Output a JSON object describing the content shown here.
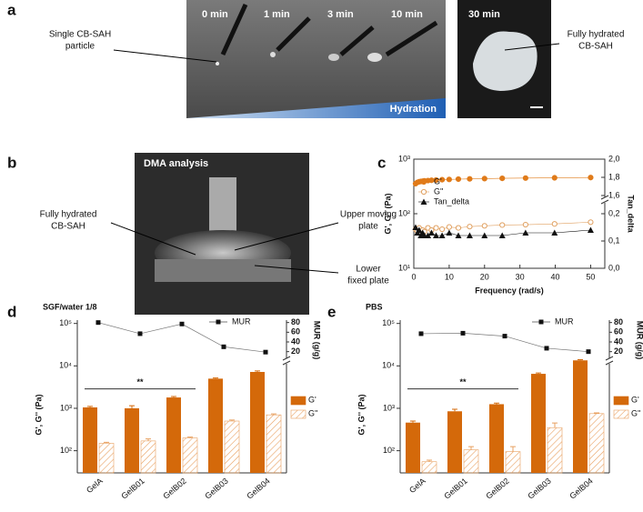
{
  "panel_labels": [
    "a",
    "b",
    "c",
    "d",
    "e"
  ],
  "panel_a": {
    "times": [
      "0 min",
      "1 min",
      "3 min",
      "10 min"
    ],
    "time_30": "30 min",
    "hydration": "Hydration",
    "left_label": [
      "Single CB-SAH",
      "particle"
    ],
    "right_label": [
      "Fully hydrated",
      "CB-SAH"
    ]
  },
  "panel_b": {
    "title": "DMA analysis",
    "left_label": [
      "Fully hydrated",
      "CB-SAH"
    ],
    "upper_label": [
      "Upper moving",
      "plate"
    ],
    "lower_label": [
      "Lower",
      "fixed plate"
    ]
  },
  "chart_data": [
    {
      "type": "scatter",
      "xlabel": "Frequency (rad/s)",
      "ylabel": "G', G'' (Pa)",
      "y2label": "Tan_delta",
      "log_y": true,
      "x": [
        0.5,
        1,
        1.5,
        2,
        2.5,
        3,
        4,
        5,
        6.3,
        8,
        10,
        12.6,
        15.8,
        20,
        25,
        31.6,
        39.8,
        50
      ],
      "xlim": [
        0,
        54
      ],
      "xticks": [
        0,
        10,
        20,
        30,
        40,
        50
      ],
      "ylim": [
        10,
        1000
      ],
      "yticks": [
        {
          "value": 10,
          "label": "10¹"
        },
        {
          "value": 100,
          "label": "10²"
        },
        {
          "value": 1000,
          "label": "10³"
        }
      ],
      "y2lim": [
        0,
        2.0
      ],
      "y2_break": [
        0.25,
        1.55
      ],
      "y2ticks": [
        {
          "value": 0,
          "label": "0,0"
        },
        {
          "value": 0.1,
          "label": "0,1"
        },
        {
          "value": 0.2,
          "label": "0,2"
        },
        {
          "value": 1.6,
          "label": "1,6"
        },
        {
          "value": 1.8,
          "label": "1,8"
        },
        {
          "value": 2.0,
          "label": "2,0"
        }
      ],
      "series": [
        {
          "name": "G'",
          "color": "#e07b1a",
          "marker": "circle",
          "values": [
            355,
            375,
            385,
            390,
            395,
            400,
            405,
            410,
            415,
            420,
            425,
            430,
            435,
            440,
            445,
            450,
            455,
            460
          ]
        },
        {
          "name": "G''",
          "color": "#e0a060",
          "marker": "open-circle",
          "values": [
            52,
            48,
            55,
            45,
            50,
            47,
            55,
            50,
            55,
            52,
            57,
            55,
            58,
            60,
            62,
            63,
            65,
            70
          ]
        },
        {
          "name": "Tan_delta",
          "color": "#111111",
          "marker": "triangle",
          "axis": "y2",
          "values": [
            0.15,
            0.13,
            0.14,
            0.12,
            0.13,
            0.12,
            0.12,
            0.13,
            0.12,
            0.12,
            0.13,
            0.12,
            0.12,
            0.12,
            0.12,
            0.13,
            0.13,
            0.14
          ]
        }
      ]
    },
    {
      "type": "bar",
      "title": "SGF/water 1/8",
      "ylabel": "G', G'' (Pa)",
      "y2label": "MUR (g/g)",
      "log_y": true,
      "categories": [
        "GelA",
        "GelB01",
        "GelB02",
        "GelB03",
        "GelB04"
      ],
      "ylim": [
        30,
        120000
      ],
      "yticks": [
        {
          "value": 100,
          "label": "10²"
        },
        {
          "value": 1000,
          "label": "10³"
        },
        {
          "value": 10000,
          "label": "10⁴"
        },
        {
          "value": 100000,
          "label": "10⁵"
        }
      ],
      "y2lim": [
        10,
        85
      ],
      "y2ticks": [
        20,
        40,
        60,
        80
      ],
      "significance": {
        "label": "**",
        "between": [
          "GelA",
          "GelB02"
        ]
      },
      "series": [
        {
          "name": "G'",
          "color": "#d4690a",
          "fill": "solid",
          "values": [
            1050,
            1000,
            1800,
            5000,
            7200
          ],
          "errors": [
            60,
            150,
            100,
            200,
            400
          ]
        },
        {
          "name": "G''",
          "color": "#e8a060",
          "fill": "hatch",
          "values": [
            150,
            170,
            200,
            500,
            700
          ],
          "errors": [
            8,
            20,
            10,
            30,
            40
          ]
        },
        {
          "name": "MUR",
          "color": "#111111",
          "axis": "y2",
          "values": [
            80,
            57,
            77,
            30,
            19
          ]
        }
      ]
    },
    {
      "type": "bar",
      "title": "PBS",
      "ylabel": "G', G'' (Pa)",
      "y2label": "MUR (g/g)",
      "log_y": true,
      "categories": [
        "GelA",
        "GelB01",
        "GelB02",
        "GelB03",
        "GelB04"
      ],
      "ylim": [
        30,
        120000
      ],
      "yticks": [
        {
          "value": 100,
          "label": "10²"
        },
        {
          "value": 1000,
          "label": "10³"
        },
        {
          "value": 10000,
          "label": "10⁴"
        },
        {
          "value": 100000,
          "label": "10⁵"
        }
      ],
      "y2lim": [
        10,
        85
      ],
      "y2ticks": [
        20,
        40,
        60,
        80
      ],
      "significance": {
        "label": "**",
        "between": [
          "GelA",
          "GelB02"
        ]
      },
      "series": [
        {
          "name": "G'",
          "color": "#d4690a",
          "fill": "solid",
          "values": [
            460,
            850,
            1250,
            6500,
            13500
          ],
          "errors": [
            40,
            100,
            80,
            300,
            500
          ]
        },
        {
          "name": "G''",
          "color": "#e8a060",
          "fill": "hatch",
          "values": [
            55,
            105,
            95,
            350,
            750
          ],
          "errors": [
            5,
            20,
            30,
            100,
            30
          ]
        },
        {
          "name": "MUR",
          "color": "#111111",
          "axis": "y2",
          "values": [
            57,
            58,
            52,
            27,
            20
          ]
        }
      ]
    }
  ]
}
